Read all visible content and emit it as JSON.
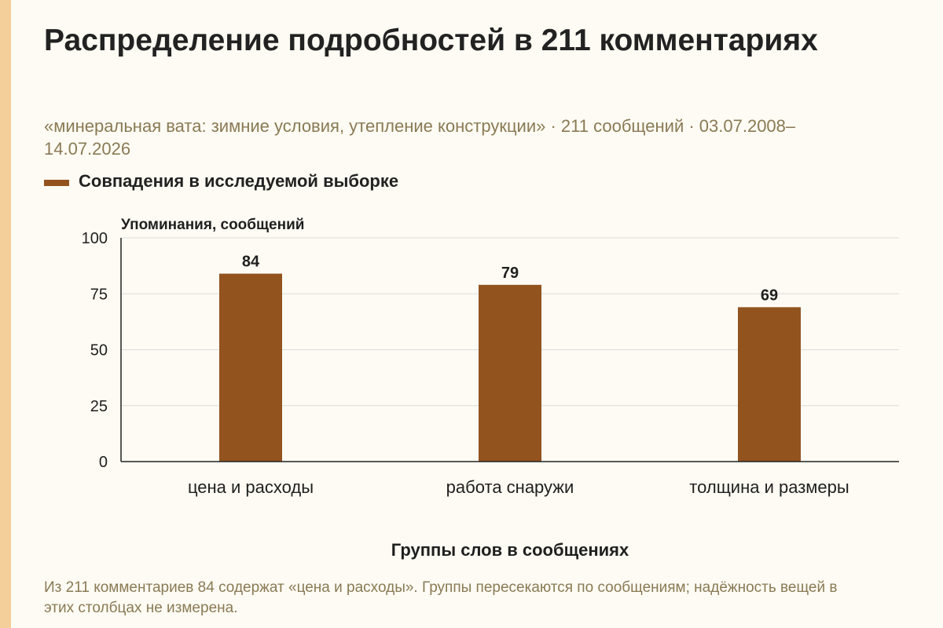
{
  "page": {
    "title": "Распределение подробностей в 211 комментариях",
    "subtitle": "«минеральная вата: зимние условия, утепление конструкции» · 211 сообщений · 03.07.2008–14.07.2026",
    "footnote": "Из 211 комментариев 84 содержат «цена и расходы». Группы пересекаются по сообщениям; надёжность вещей в этих столбцах не измерена."
  },
  "colors": {
    "bar": "#93531f",
    "accent_strip": "#f5cf9a",
    "grid": "#dcdcdc",
    "axis": "#222222"
  },
  "chart_data": {
    "type": "bar",
    "categories": [
      "цена и расходы",
      "работа снаружи",
      "толщина и размеры"
    ],
    "series": [
      {
        "name": "Совпадения в исследуемой выборке",
        "values": [
          84,
          79,
          69
        ]
      }
    ],
    "xlabel": "Группы слов в сообщениях",
    "ylabel": "Упоминания, сообщений",
    "ylim": [
      0,
      100
    ],
    "yticks": [
      0,
      25,
      50,
      75,
      100
    ],
    "grid": true,
    "legend": "top-left",
    "data_labels": true
  }
}
